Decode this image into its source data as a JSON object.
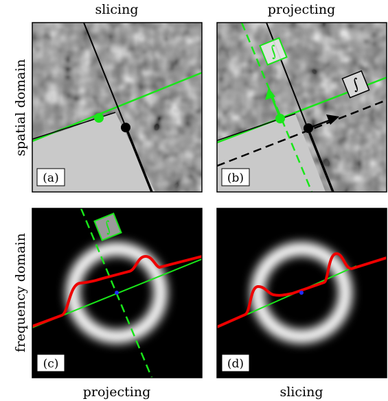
{
  "column_labels_top": [
    "slicing",
    "projecting"
  ],
  "column_labels_bottom": [
    "projecting",
    "slicing"
  ],
  "row_labels": [
    "spatial domain",
    "frequency domain"
  ],
  "panel_labels": [
    "(a)",
    "(b)",
    "(c)",
    "(d)"
  ],
  "integral_symbol": "∫",
  "colors": {
    "green": "#19e619",
    "red": "#ee0000",
    "blue": "#1f2dff",
    "black": "#000000",
    "slice_gray": "#c9c9c9"
  }
}
